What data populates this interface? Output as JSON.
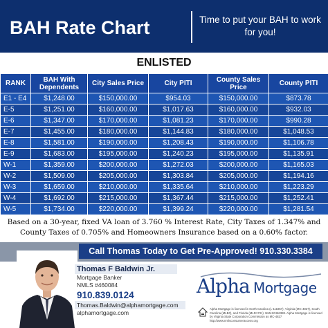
{
  "header": {
    "title": "BAH Rate Chart",
    "tagline": "Time to put your BAH to work for you!"
  },
  "subtitle": "ENLISTED",
  "table": {
    "columns": [
      "RANK",
      "BAH With Dependents",
      "City Sales Price",
      "City PITI",
      "County Sales Price",
      "County PITI"
    ],
    "rows": [
      [
        "E1 - E4",
        "$1,248.00",
        "$150,000.00",
        "$954.03",
        "$150,000.00",
        "$873.78"
      ],
      [
        "E-5",
        "$1,251.00",
        "$160,000.00",
        "$1,017.63",
        "$160,000.00",
        "$932.03"
      ],
      [
        "E-6",
        "$1,347.00",
        "$170,000.00",
        "$1,081.23",
        "$170,000.00",
        "$990.28"
      ],
      [
        "E-7",
        "$1,455.00",
        "$180,000.00",
        "$1,144.83",
        "$180,000.00",
        "$1,048.53"
      ],
      [
        "E-8",
        "$1,581.00",
        "$190,000.00",
        "$1,208.43",
        "$190,000.00",
        "$1,106.78"
      ],
      [
        "E-9",
        "$1,683.00",
        "$195,000.00",
        "$1,240.23",
        "$195,000.00",
        "$1,135.91"
      ],
      [
        "W-1",
        "$1,359.00",
        "$200,000.00",
        "$1,272.03",
        "$200,000.00",
        "$1,165.03"
      ],
      [
        "W-2",
        "$1,509.00",
        "$205,000.00",
        "$1,303.84",
        "$205,000.00",
        "$1,194.16"
      ],
      [
        "W-3",
        "$1,659.00",
        "$210,000.00",
        "$1,335.64",
        "$210,000.00",
        "$1,223.29"
      ],
      [
        "W-4",
        "$1,692.00",
        "$215,000.00",
        "$1,367.44",
        "$215,000.00",
        "$1,252.41"
      ],
      [
        "W-5",
        "$1,734.00",
        "$220,000.00",
        "$1,399.24",
        "$220,000.00",
        "$1,281.54"
      ]
    ]
  },
  "footnote": "Based on a 30-year, fixed VA loan of 3.760 % Interest Rate, City Taxes of 1.347% and County Taxes of 0.705% and Homeowners Insurance based on a 0.60% factor.",
  "cta": "Call Thomas Today to Get Pre-Approved! 910.330.3384",
  "contact": {
    "name": "Thomas F Baldwin Jr.",
    "role": "Mortgage Banker",
    "nmls": "NMLS #460084",
    "phone": "910.839.0124",
    "email": "Thomas.Baldwin@alphamortgage.com",
    "website": "alphamortgage.com"
  },
  "logo": {
    "alpha": "Alpha",
    "mortgage": "Mortgage"
  },
  "disclaimer": "Alpha Mortgage is licensed in North Carolina (L-111857), Virginia (MC-4827), South Carolina (MLB#), and Florida (MLD1731). NMLS#466388. Alpha Mortgage is licensed by Virginia State Corporation Commission as MC-4827 http://www.nmlsconsumeraccess.org",
  "colors": {
    "header_bg": "#0d2f6e",
    "table_bg": "#1b4fa8",
    "cta_bg": "#1b3f87",
    "brand": "#1b3f87"
  },
  "icons": [
    "equal-housing-icon"
  ]
}
